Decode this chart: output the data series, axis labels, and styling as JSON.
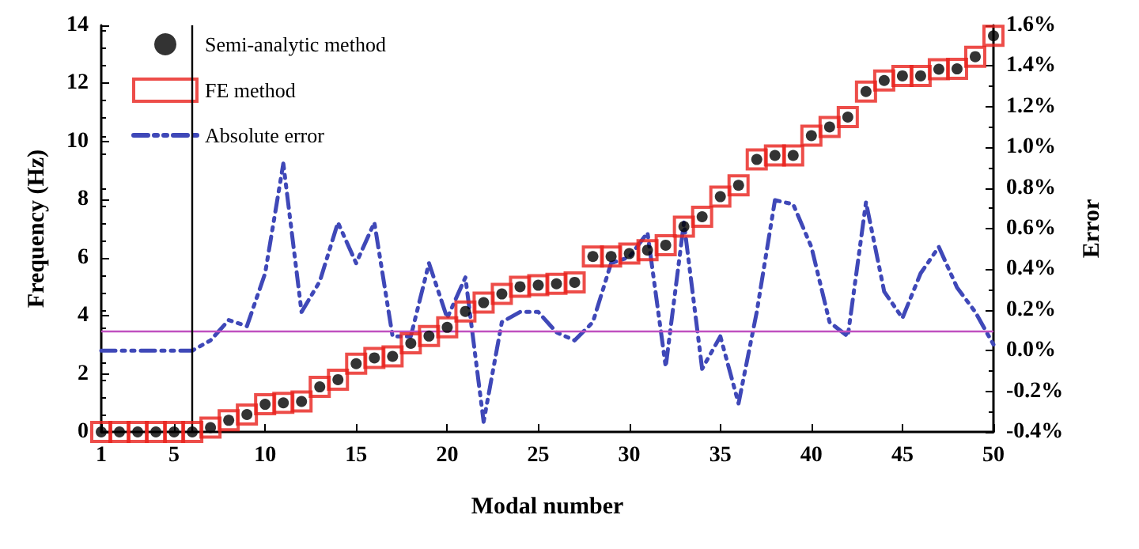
{
  "chart_data": {
    "type": "scatter",
    "xlabel": "Modal number",
    "ylabel": "Frequency (Hz)",
    "y2label": "Error",
    "x": [
      1,
      2,
      3,
      4,
      5,
      6,
      7,
      8,
      9,
      10,
      11,
      12,
      13,
      14,
      15,
      16,
      17,
      18,
      19,
      20,
      21,
      22,
      23,
      24,
      25,
      26,
      27,
      28,
      29,
      30,
      31,
      32,
      33,
      34,
      35,
      36,
      37,
      38,
      39,
      40,
      41,
      42,
      43,
      44,
      45,
      46,
      47,
      48,
      49,
      50
    ],
    "series": [
      {
        "name": "Semi-analytic method",
        "marker": "circle",
        "color": "#000000",
        "values": [
          0,
          0,
          0,
          0,
          0,
          0,
          0.15,
          0.4,
          0.6,
          0.95,
          1.0,
          1.05,
          1.55,
          1.8,
          2.35,
          2.55,
          2.6,
          3.05,
          3.3,
          3.6,
          4.15,
          4.45,
          4.75,
          5.0,
          5.05,
          5.1,
          5.15,
          6.04,
          6.04,
          6.14,
          6.26,
          6.43,
          7.07,
          7.41,
          8.1,
          8.49,
          9.38,
          9.52,
          9.52,
          10.2,
          10.5,
          10.84,
          11.72,
          12.1,
          12.26,
          12.26,
          12.49,
          12.5,
          12.92,
          13.64
        ]
      },
      {
        "name": "FE method",
        "marker": "square",
        "color": "#e8201c",
        "values": [
          0,
          0,
          0,
          0,
          0,
          0,
          0.15,
          0.4,
          0.6,
          0.95,
          1.0,
          1.05,
          1.55,
          1.8,
          2.35,
          2.55,
          2.6,
          3.05,
          3.3,
          3.6,
          4.15,
          4.45,
          4.75,
          5.0,
          5.05,
          5.1,
          5.15,
          6.04,
          6.04,
          6.14,
          6.26,
          6.43,
          7.07,
          7.41,
          8.1,
          8.49,
          9.38,
          9.52,
          9.52,
          10.2,
          10.5,
          10.84,
          11.72,
          12.1,
          12.26,
          12.26,
          12.49,
          12.5,
          12.92,
          13.64
        ]
      },
      {
        "name": "Absolute error",
        "type": "line",
        "axis": "y2",
        "marker": "none",
        "line_style": "dashed",
        "color": "#3f48b8",
        "values": [
          0,
          0,
          0,
          0,
          0,
          0,
          0.05,
          0.15,
          0.12,
          0.38,
          0.92,
          0.19,
          0.34,
          0.63,
          0.43,
          0.63,
          0.07,
          0.07,
          0.43,
          0.16,
          0.36,
          -0.35,
          0.14,
          0.19,
          0.19,
          0.09,
          0.05,
          0.14,
          0.43,
          0.46,
          0.58,
          -0.08,
          0.63,
          -0.09,
          0.07,
          -0.26,
          0.19,
          0.74,
          0.72,
          0.51,
          0.14,
          0.07,
          0.73,
          0.29,
          0.16,
          0.38,
          0.51,
          0.31,
          0.19,
          0.03
        ]
      }
    ],
    "xlim": [
      1,
      50
    ],
    "xticks": [
      1,
      5,
      10,
      15,
      20,
      25,
      30,
      35,
      40,
      45,
      50
    ],
    "ylim": [
      0,
      14
    ],
    "yticks": [
      0,
      2,
      4,
      6,
      8,
      10,
      12,
      14
    ],
    "y2lim": [
      -0.4,
      1.6
    ],
    "y2ticks": [
      {
        "value": -0.4,
        "label": "-0.4%"
      },
      {
        "value": -0.2,
        "label": "-0.2%"
      },
      {
        "value": 0,
        "label": "0.0%"
      },
      {
        "value": 0.2,
        "label": "0.2%"
      },
      {
        "value": 0.4,
        "label": "0.4%"
      },
      {
        "value": 0.6,
        "label": "0.6%"
      },
      {
        "value": 0.8,
        "label": "0.8%"
      },
      {
        "value": 1.0,
        "label": "1.0%"
      },
      {
        "value": 1.2,
        "label": "1.2%"
      },
      {
        "value": 1.4,
        "label": "1.4%"
      },
      {
        "value": 1.6,
        "label": "1.6%"
      }
    ],
    "ref_lines": [
      {
        "axis": "y2",
        "value": 0.1,
        "color": "#c050c0"
      },
      {
        "axis": "x",
        "value": 6,
        "color": "#000000"
      }
    ],
    "grid": false,
    "legend": "top left"
  }
}
